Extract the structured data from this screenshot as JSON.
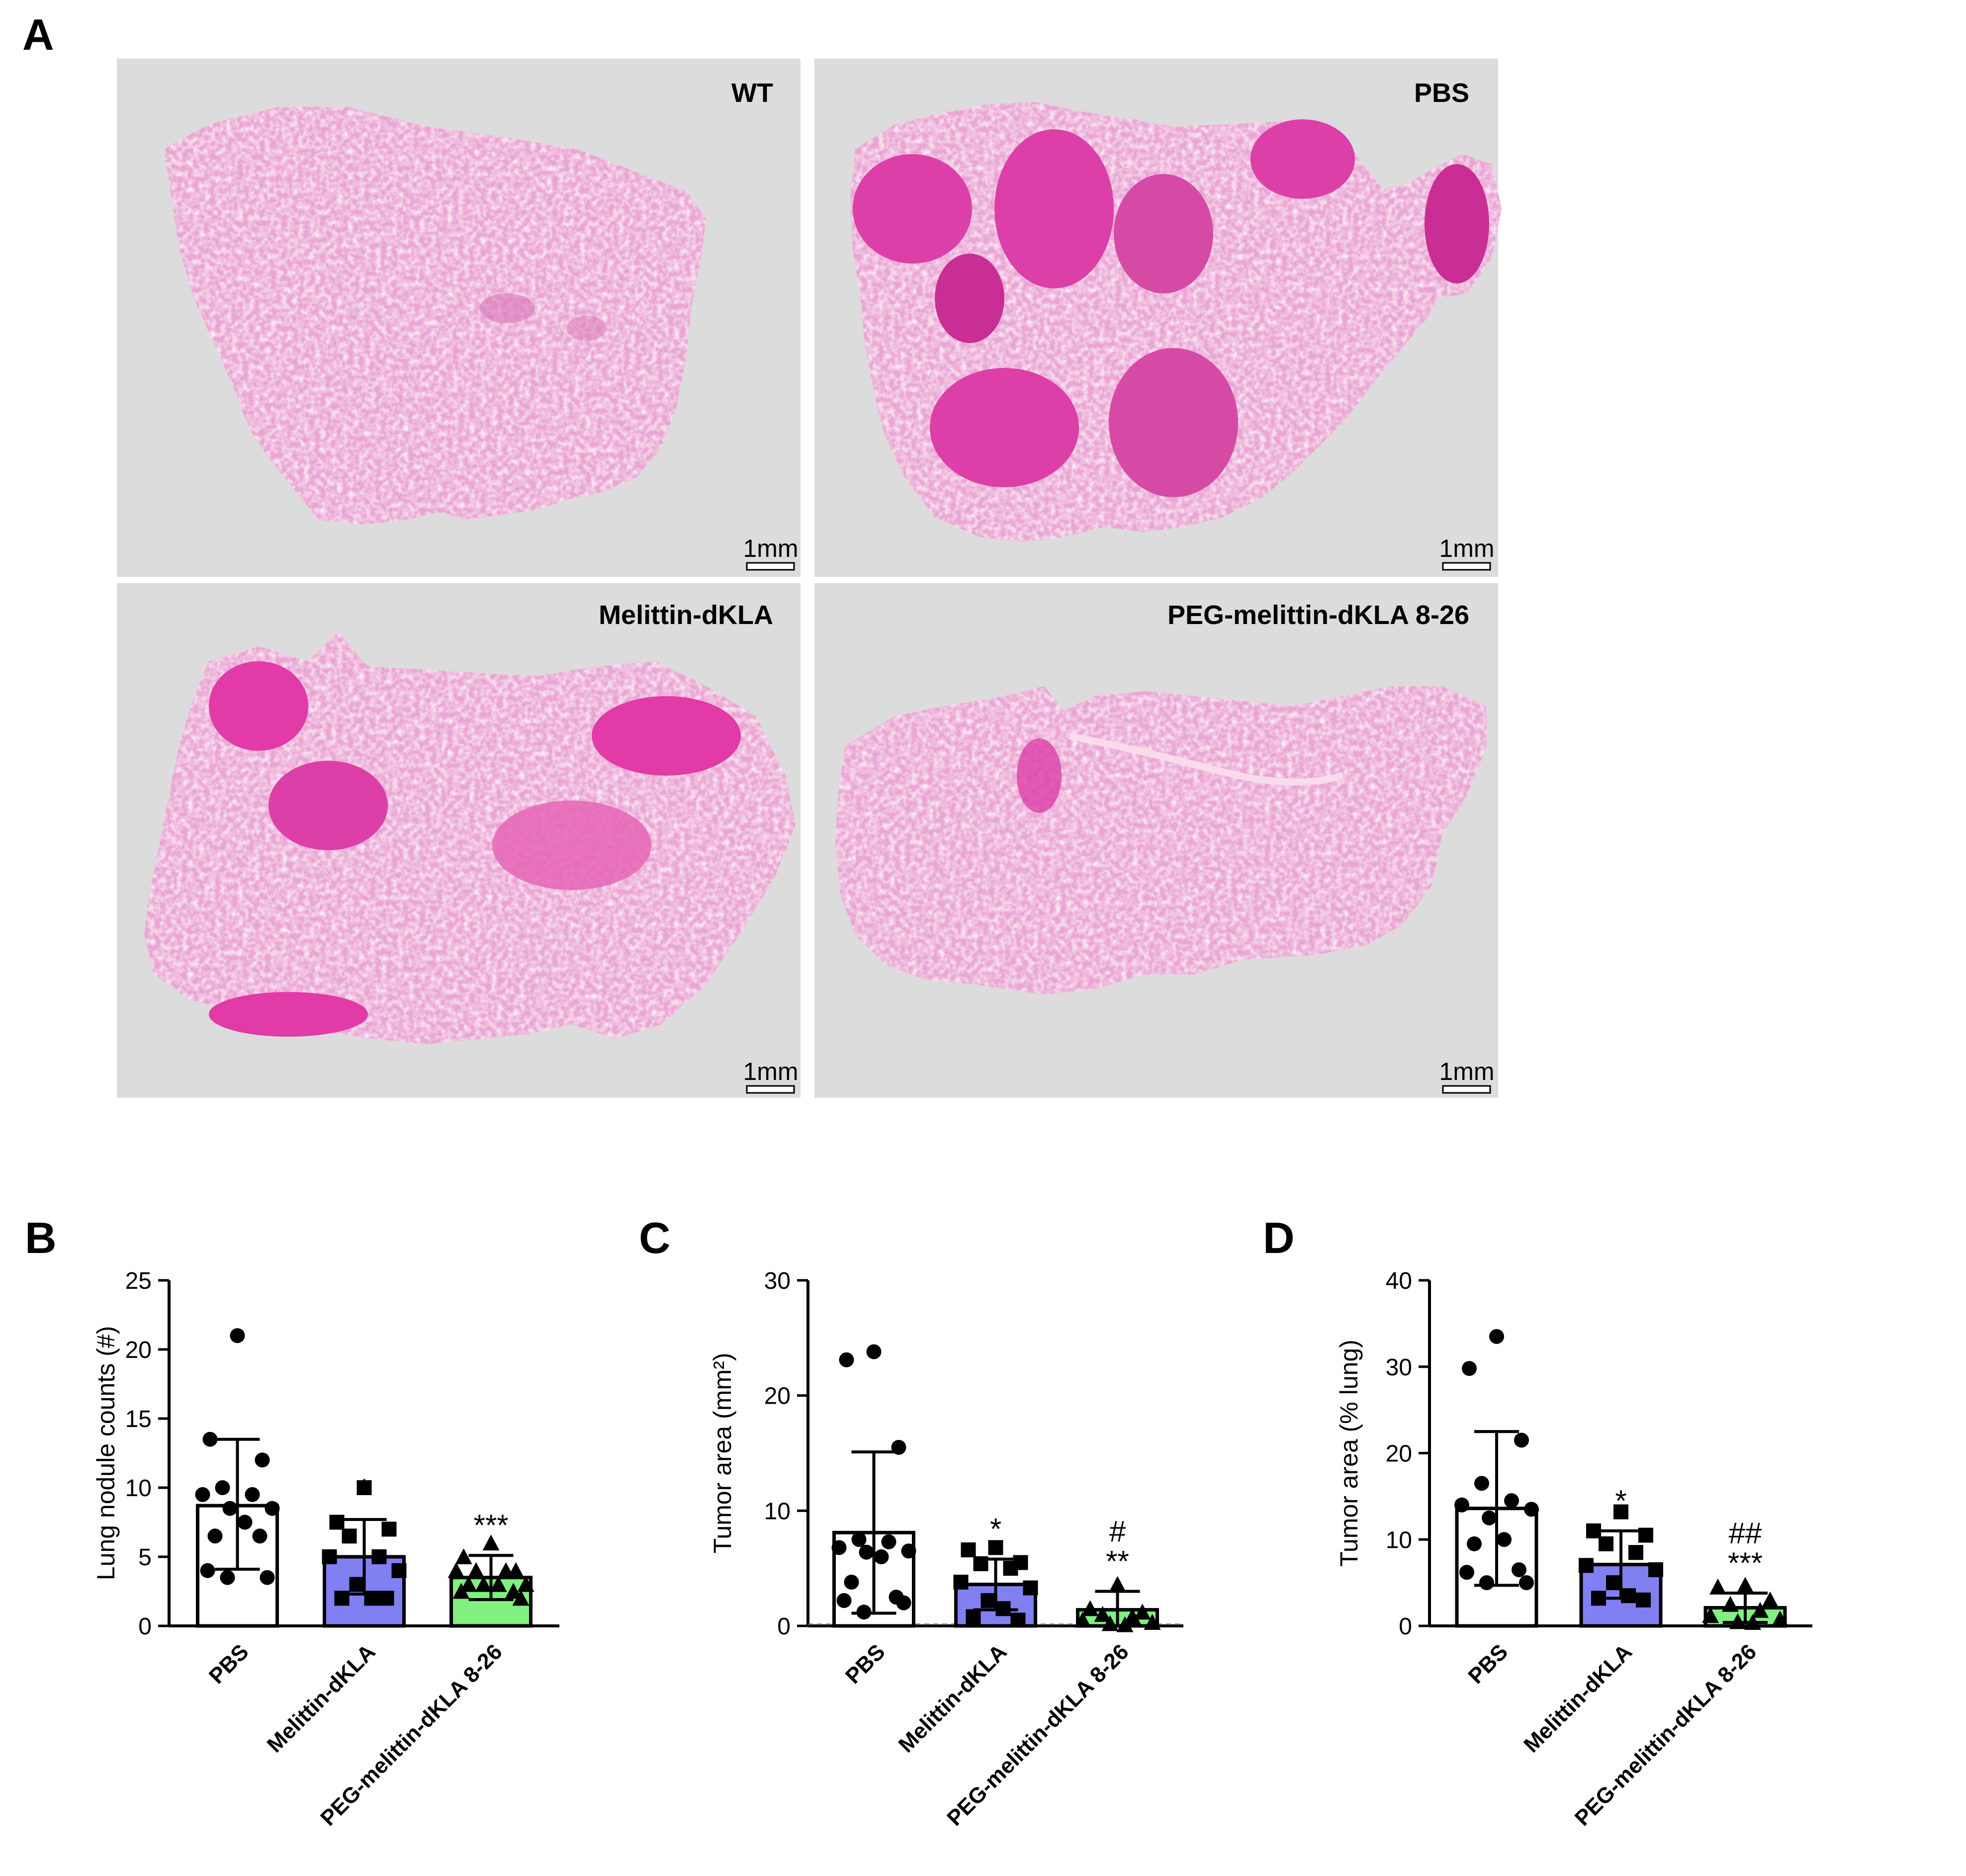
{
  "panel_a": {
    "letter": "A",
    "images": [
      {
        "label": "WT",
        "scale": "1mm"
      },
      {
        "label": "PBS",
        "scale": "1mm"
      },
      {
        "label": "Melittin-dKLA",
        "scale": "1mm"
      },
      {
        "label": "PEG-melittin-dKLA 8-26",
        "scale": "1mm"
      }
    ]
  },
  "colors": {
    "pbs": "#ffffff",
    "melittin": "#8080f2",
    "peg": "#80f080",
    "tissue": "#eaa5d3",
    "tumor": "#dc3fa8",
    "slide": "#dcdcdc"
  },
  "chart_data": [
    {
      "letter": "B",
      "type": "bar",
      "ylabel": "Lung nodule counts (#)",
      "ylim": [
        0,
        25
      ],
      "yticks": [
        0,
        5,
        10,
        15,
        20,
        25
      ],
      "categories": [
        "PBS",
        "Melittin-dKLA",
        "PEG-melittin-dKLA 8-26"
      ],
      "means": [
        8.7,
        5.0,
        3.5
      ],
      "sd_high": [
        13.5,
        7.7,
        5.1
      ],
      "sd_low": [
        4.1,
        2.3,
        1.9
      ],
      "markers": [
        "circle",
        "square",
        "triangle"
      ],
      "points": [
        [
          21,
          13.5,
          12,
          10,
          9.5,
          9.5,
          8.5,
          8.5,
          7.5,
          6.5,
          6.5,
          4,
          3.5,
          3.5
        ],
        [
          10,
          7.5,
          7,
          6.5,
          5,
          5,
          4,
          3,
          2,
          2,
          2
        ],
        [
          6,
          5,
          4,
          4,
          4,
          4,
          3,
          3,
          3,
          3,
          2.5,
          2.5,
          2
        ]
      ],
      "significance": [
        "",
        "*",
        "***"
      ]
    },
    {
      "letter": "C",
      "type": "bar",
      "ylabel": "Tumor area (mm²)",
      "ylim": [
        0,
        30
      ],
      "yticks": [
        0,
        10,
        20,
        30
      ],
      "categories": [
        "PBS",
        "Melittin-dKLA",
        "PEG-melittin-dKLA 8-26"
      ],
      "means": [
        8.1,
        3.6,
        1.4
      ],
      "sd_high": [
        15.1,
        5.8,
        3.0
      ],
      "sd_low": [
        1.1,
        1.4,
        0.0
      ],
      "markers": [
        "circle",
        "square",
        "triangle"
      ],
      "points": [
        [
          23.8,
          23.1,
          15.5,
          7.5,
          7.3,
          6.8,
          6.5,
          6.4,
          6,
          3.8,
          2.5,
          2.2,
          2,
          1.2
        ],
        [
          6.8,
          6.6,
          5.5,
          5.4,
          5,
          3.8,
          3.3,
          2.2,
          1.5,
          0.8,
          0.5
        ],
        [
          3.6,
          1.5,
          1.2,
          1.0,
          0.8,
          0.5,
          0.3,
          0.2,
          0.1
        ]
      ],
      "significance": [
        "",
        "*",
        "#\n**"
      ]
    },
    {
      "letter": "D",
      "type": "bar",
      "ylabel": "Tumor area (% lung)",
      "ylim": [
        0,
        40
      ],
      "yticks": [
        0,
        10,
        20,
        30,
        40
      ],
      "categories": [
        "PBS",
        "Melittin-dKLA",
        "PEG-melittin-dKLA 8-26"
      ],
      "means": [
        13.6,
        7.1,
        2.1
      ],
      "sd_high": [
        22.5,
        11.0,
        3.8
      ],
      "sd_low": [
        4.7,
        3.2,
        0.4
      ],
      "markers": [
        "circle",
        "square",
        "triangle"
      ],
      "points": [
        [
          33.5,
          29.8,
          21.5,
          16.5,
          14.5,
          14,
          13.5,
          12.5,
          10,
          9.5,
          6.5,
          6.2,
          5,
          5
        ],
        [
          13.2,
          11,
          10.5,
          9.5,
          8.5,
          7,
          6.5,
          5,
          3.5,
          3.2,
          3
        ],
        [
          4.7,
          4.5,
          3,
          2.5,
          1.8,
          1.2,
          0.8,
          0.5,
          0.4
        ]
      ],
      "significance": [
        "",
        "*",
        "##\n***"
      ]
    }
  ]
}
